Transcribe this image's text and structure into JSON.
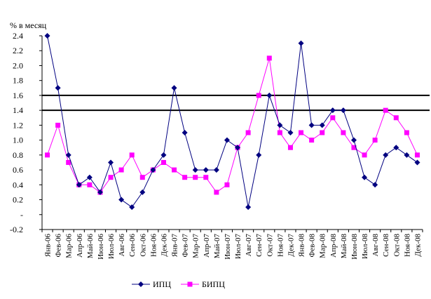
{
  "chart_data": {
    "type": "line",
    "ylabel": "% в месяц",
    "ylim": [
      -0.2,
      2.4
    ],
    "yticks": [
      -0.2,
      0,
      0.2,
      0.4,
      0.6,
      0.8,
      1.0,
      1.2,
      1.4,
      1.6,
      1.8,
      2.0,
      2.2,
      2.4
    ],
    "ytick_labels": [
      "-0.2",
      "-",
      "0.2",
      "0.4",
      "0.6",
      "0.8",
      "1.0",
      "1.2",
      "1.4",
      "1.6",
      "1.8",
      "2.0",
      "2.2",
      "2.4"
    ],
    "reference_lines": [
      1.4,
      1.6
    ],
    "categories": [
      "Янв-06",
      "Фев-06",
      "Мар-06",
      "Апр-06",
      "Май-06",
      "Июн-06",
      "Июл-06",
      "Авг-06",
      "Сен-06",
      "Окт-06",
      "Ноя-06",
      "Дек-06",
      "Янв-07",
      "Фев-07",
      "Мар-07",
      "Апр-07",
      "Май-07",
      "Июн-07",
      "Июл-07",
      "Авг-07",
      "Сен-07",
      "Окт-07",
      "Ноя-07",
      "Дек-07",
      "Янв-08",
      "Фев-08",
      "Мар-08",
      "Апр-08",
      "Май-08",
      "Июн-08",
      "Июл-08",
      "Авг-08",
      "Сен-08",
      "Окт-08",
      "Ноя-08",
      "Дек-08"
    ],
    "series": [
      {
        "name": "ИПЦ",
        "color": "#000080",
        "marker": "diamond",
        "values": [
          2.4,
          1.7,
          0.8,
          0.4,
          0.5,
          0.3,
          0.7,
          0.2,
          0.1,
          0.3,
          0.6,
          0.8,
          1.7,
          1.1,
          0.6,
          0.6,
          0.6,
          1.0,
          0.9,
          0.1,
          0.8,
          1.6,
          1.2,
          1.1,
          2.3,
          1.2,
          1.2,
          1.4,
          1.4,
          1.0,
          0.5,
          0.4,
          0.8,
          0.9,
          0.8,
          0.7
        ]
      },
      {
        "name": "БИПЦ",
        "color": "#FF00FF",
        "marker": "square",
        "values": [
          0.8,
          1.2,
          0.7,
          0.4,
          0.4,
          0.3,
          0.5,
          0.6,
          0.8,
          0.5,
          0.6,
          0.7,
          0.6,
          0.5,
          0.5,
          0.5,
          0.3,
          0.4,
          0.9,
          1.1,
          1.6,
          2.1,
          1.1,
          0.9,
          1.1,
          1.0,
          1.1,
          1.3,
          1.1,
          0.9,
          0.8,
          1.0,
          1.4,
          1.3,
          1.1,
          0.8
        ]
      }
    ],
    "legend": "bottom",
    "grid": false
  }
}
